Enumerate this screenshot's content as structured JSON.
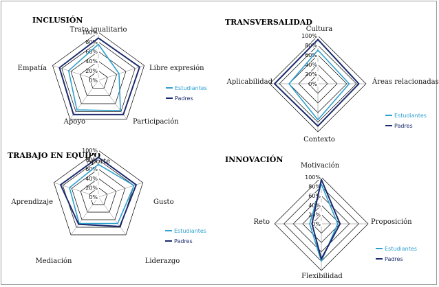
{
  "colors": {
    "estudiantes": "#2e9fcf",
    "padres": "#1a2a6c",
    "grid": "#000000"
  },
  "chart_data": [
    {
      "type": "radar",
      "title": "INCLUSIÓN",
      "axes": [
        "Trato igualitario",
        "Libre expresión",
        "Participación",
        "Apoyo",
        "Empatía"
      ],
      "ticks": [
        "0%",
        "20%",
        "40%",
        "60%",
        "80%",
        "100%"
      ],
      "rlim": [
        0,
        100
      ],
      "legend": "right",
      "series": [
        {
          "name": "Estudiantes",
          "values": [
            75,
            45,
            78,
            76,
            65
          ]
        },
        {
          "name": "Padres",
          "values": [
            88,
            90,
            88,
            88,
            85
          ]
        }
      ]
    },
    {
      "type": "radar",
      "title": "TRANSVERSALIDAD",
      "axes": [
        "Cultura",
        "Áreas relacionadas",
        "Contexto",
        "Aplicabilidad"
      ],
      "ticks": [
        "0%",
        "20%",
        "40%",
        "60%",
        "80%",
        "100%"
      ],
      "rlim": [
        0,
        100
      ],
      "legend": "right",
      "series": [
        {
          "name": "Estudiantes",
          "values": [
            70,
            65,
            75,
            60
          ]
        },
        {
          "name": "Padres",
          "values": [
            92,
            85,
            88,
            90
          ]
        }
      ]
    },
    {
      "type": "radar",
      "title": "TRABAJO EN EQUIPO",
      "axes": [
        "Aporte",
        "Gusto",
        "Liderazgo",
        "Mediación",
        "Aprendizaje"
      ],
      "ticks": [
        "0%",
        "20%",
        "40%",
        "60%",
        "80%",
        "100%"
      ],
      "rlim": [
        0,
        100
      ],
      "legend": "right",
      "series": [
        {
          "name": "Estudiantes",
          "values": [
            70,
            80,
            70,
            70,
            65
          ]
        },
        {
          "name": "Padres",
          "values": [
            85,
            85,
            78,
            72,
            85
          ]
        }
      ]
    },
    {
      "type": "radar",
      "title": "INNOVACIÓN",
      "axes": [
        "Motivación",
        "Proposición",
        "Flexibilidad",
        "Reto"
      ],
      "ticks": [
        "0%",
        "20%",
        "40%",
        "60%",
        "80%",
        "100%"
      ],
      "rlim": [
        0,
        100
      ],
      "legend": "right",
      "series": [
        {
          "name": "Estudiantes",
          "values": [
            85,
            35,
            80,
            25
          ]
        },
        {
          "name": "Padres",
          "values": [
            95,
            40,
            75,
            20
          ]
        }
      ]
    }
  ]
}
